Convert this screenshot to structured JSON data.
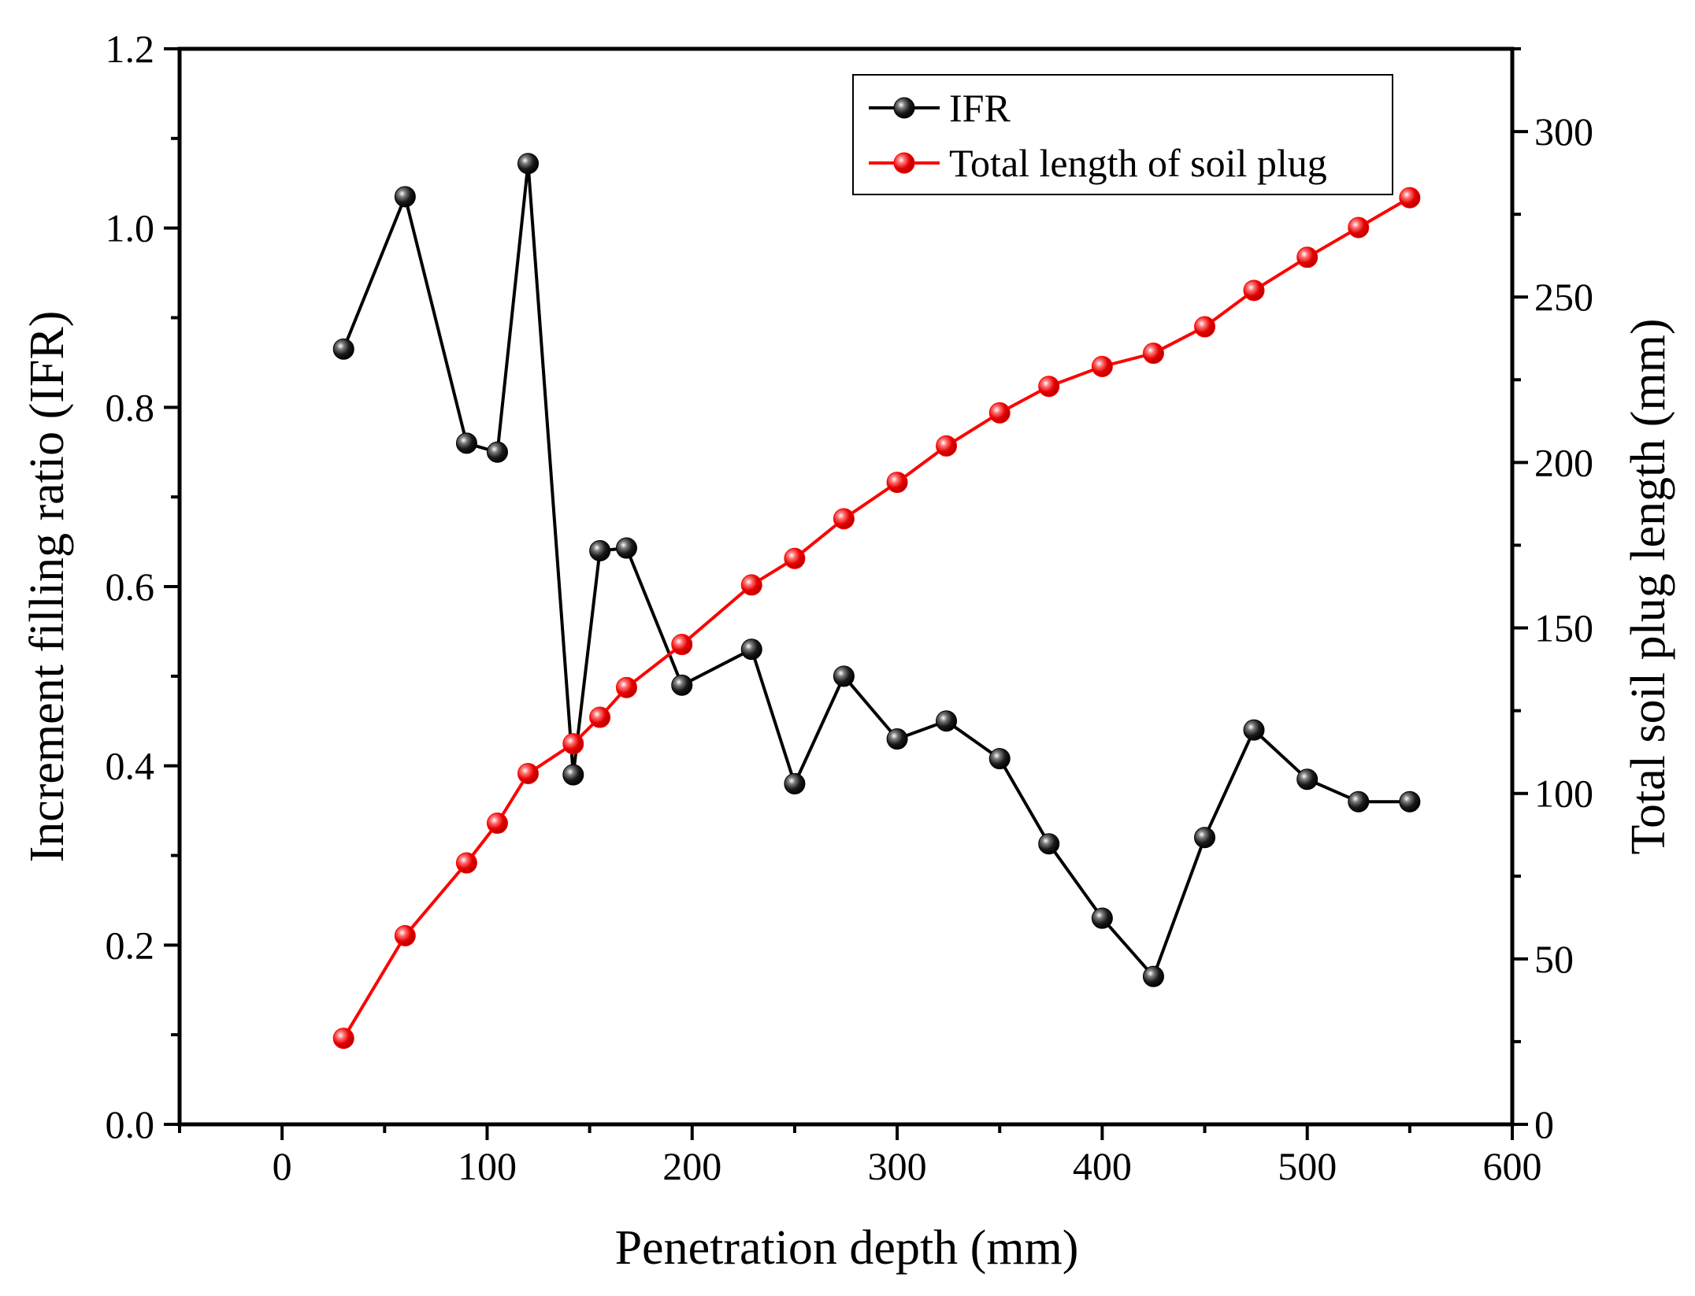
{
  "chart_data": {
    "type": "line",
    "x_axis": {
      "label": "Penetration depth (mm)",
      "range": [
        -50,
        600
      ],
      "ticks": [
        0,
        100,
        200,
        300,
        400,
        500,
        600
      ],
      "tick_labels": [
        "0",
        "100",
        "200",
        "300",
        "400",
        "500",
        "600"
      ]
    },
    "y_axis_left": {
      "label": "Increment filling ratio (IFR)",
      "range": [
        0.0,
        1.2
      ],
      "ticks": [
        0.0,
        0.2,
        0.4,
        0.6,
        0.8,
        1.0,
        1.2
      ],
      "tick_labels": [
        "0.0",
        "0.2",
        "0.4",
        "0.6",
        "0.8",
        "1.0",
        "1.2"
      ]
    },
    "y_axis_right": {
      "label": "Total soil plug length (mm)",
      "range": [
        0,
        325
      ],
      "ticks": [
        0,
        50,
        100,
        150,
        200,
        250,
        300
      ],
      "tick_labels": [
        "0",
        "50",
        "100",
        "150",
        "200",
        "250",
        "300"
      ]
    },
    "series": [
      {
        "name": "IFR",
        "axis": "left",
        "color": "#000000",
        "marker": "sphere",
        "x": [
          30,
          60,
          90,
          105,
          120,
          142,
          155,
          168,
          195,
          229,
          250,
          274,
          300,
          324,
          350,
          374,
          400,
          425,
          450,
          474,
          500,
          525,
          550
        ],
        "y": [
          0.865,
          1.035,
          0.76,
          0.75,
          1.072,
          0.39,
          0.64,
          0.643,
          0.49,
          0.53,
          0.38,
          0.5,
          0.43,
          0.45,
          0.408,
          0.313,
          0.23,
          0.165,
          0.32,
          0.44,
          0.385,
          0.36,
          0.36
        ]
      },
      {
        "name": "Total length of soil plug",
        "axis": "right",
        "color": "#ff0000",
        "marker": "sphere",
        "x": [
          30,
          60,
          90,
          105,
          120,
          142,
          155,
          168,
          195,
          229,
          250,
          274,
          300,
          324,
          350,
          374,
          400,
          425,
          450,
          474,
          500,
          525,
          550
        ],
        "y": [
          26,
          57,
          79,
          91,
          106,
          115,
          123,
          132,
          145,
          163,
          171,
          183,
          194,
          205,
          215,
          223,
          229,
          233,
          241,
          252,
          262,
          271,
          280
        ]
      }
    ],
    "legend": {
      "position": "top-right",
      "entries": [
        "IFR",
        "Total length of soil plug"
      ]
    },
    "grid": false
  }
}
